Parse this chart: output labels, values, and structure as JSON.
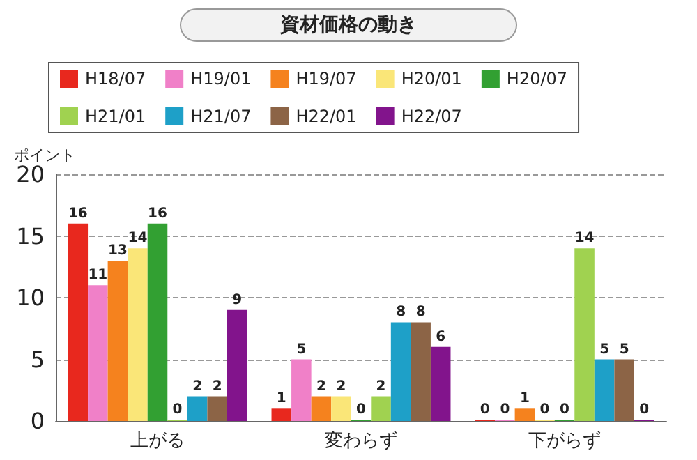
{
  "chart_data": {
    "type": "bar",
    "title": "資材価格の動き",
    "ylabel": "ポイント",
    "categories": [
      "上がる",
      "変わらず",
      "下がらず"
    ],
    "series": [
      {
        "name": "H18/07",
        "color": "#e8281e",
        "values": [
          16,
          1,
          0
        ]
      },
      {
        "name": "H19/01",
        "color": "#f080c8",
        "values": [
          11,
          5,
          0
        ]
      },
      {
        "name": "H19/07",
        "color": "#f5821e",
        "values": [
          13,
          2,
          1
        ]
      },
      {
        "name": "H20/01",
        "color": "#fae678",
        "values": [
          14,
          2,
          0
        ]
      },
      {
        "name": "H20/07",
        "color": "#32a032",
        "values": [
          16,
          0,
          0
        ]
      },
      {
        "name": "H21/01",
        "color": "#a0d250",
        "values": [
          0,
          2,
          14
        ]
      },
      {
        "name": "H21/07",
        "color": "#1ea0c8",
        "values": [
          2,
          8,
          5
        ]
      },
      {
        "name": "H22/01",
        "color": "#8c6446",
        "values": [
          2,
          8,
          5
        ]
      },
      {
        "name": "H22/07",
        "color": "#82148c",
        "values": [
          9,
          6,
          0
        ]
      }
    ],
    "ylim": [
      0,
      20
    ],
    "yticks": [
      0,
      5,
      10,
      15,
      20
    ],
    "grid": "y",
    "legend": "top",
    "data_labels": true
  }
}
